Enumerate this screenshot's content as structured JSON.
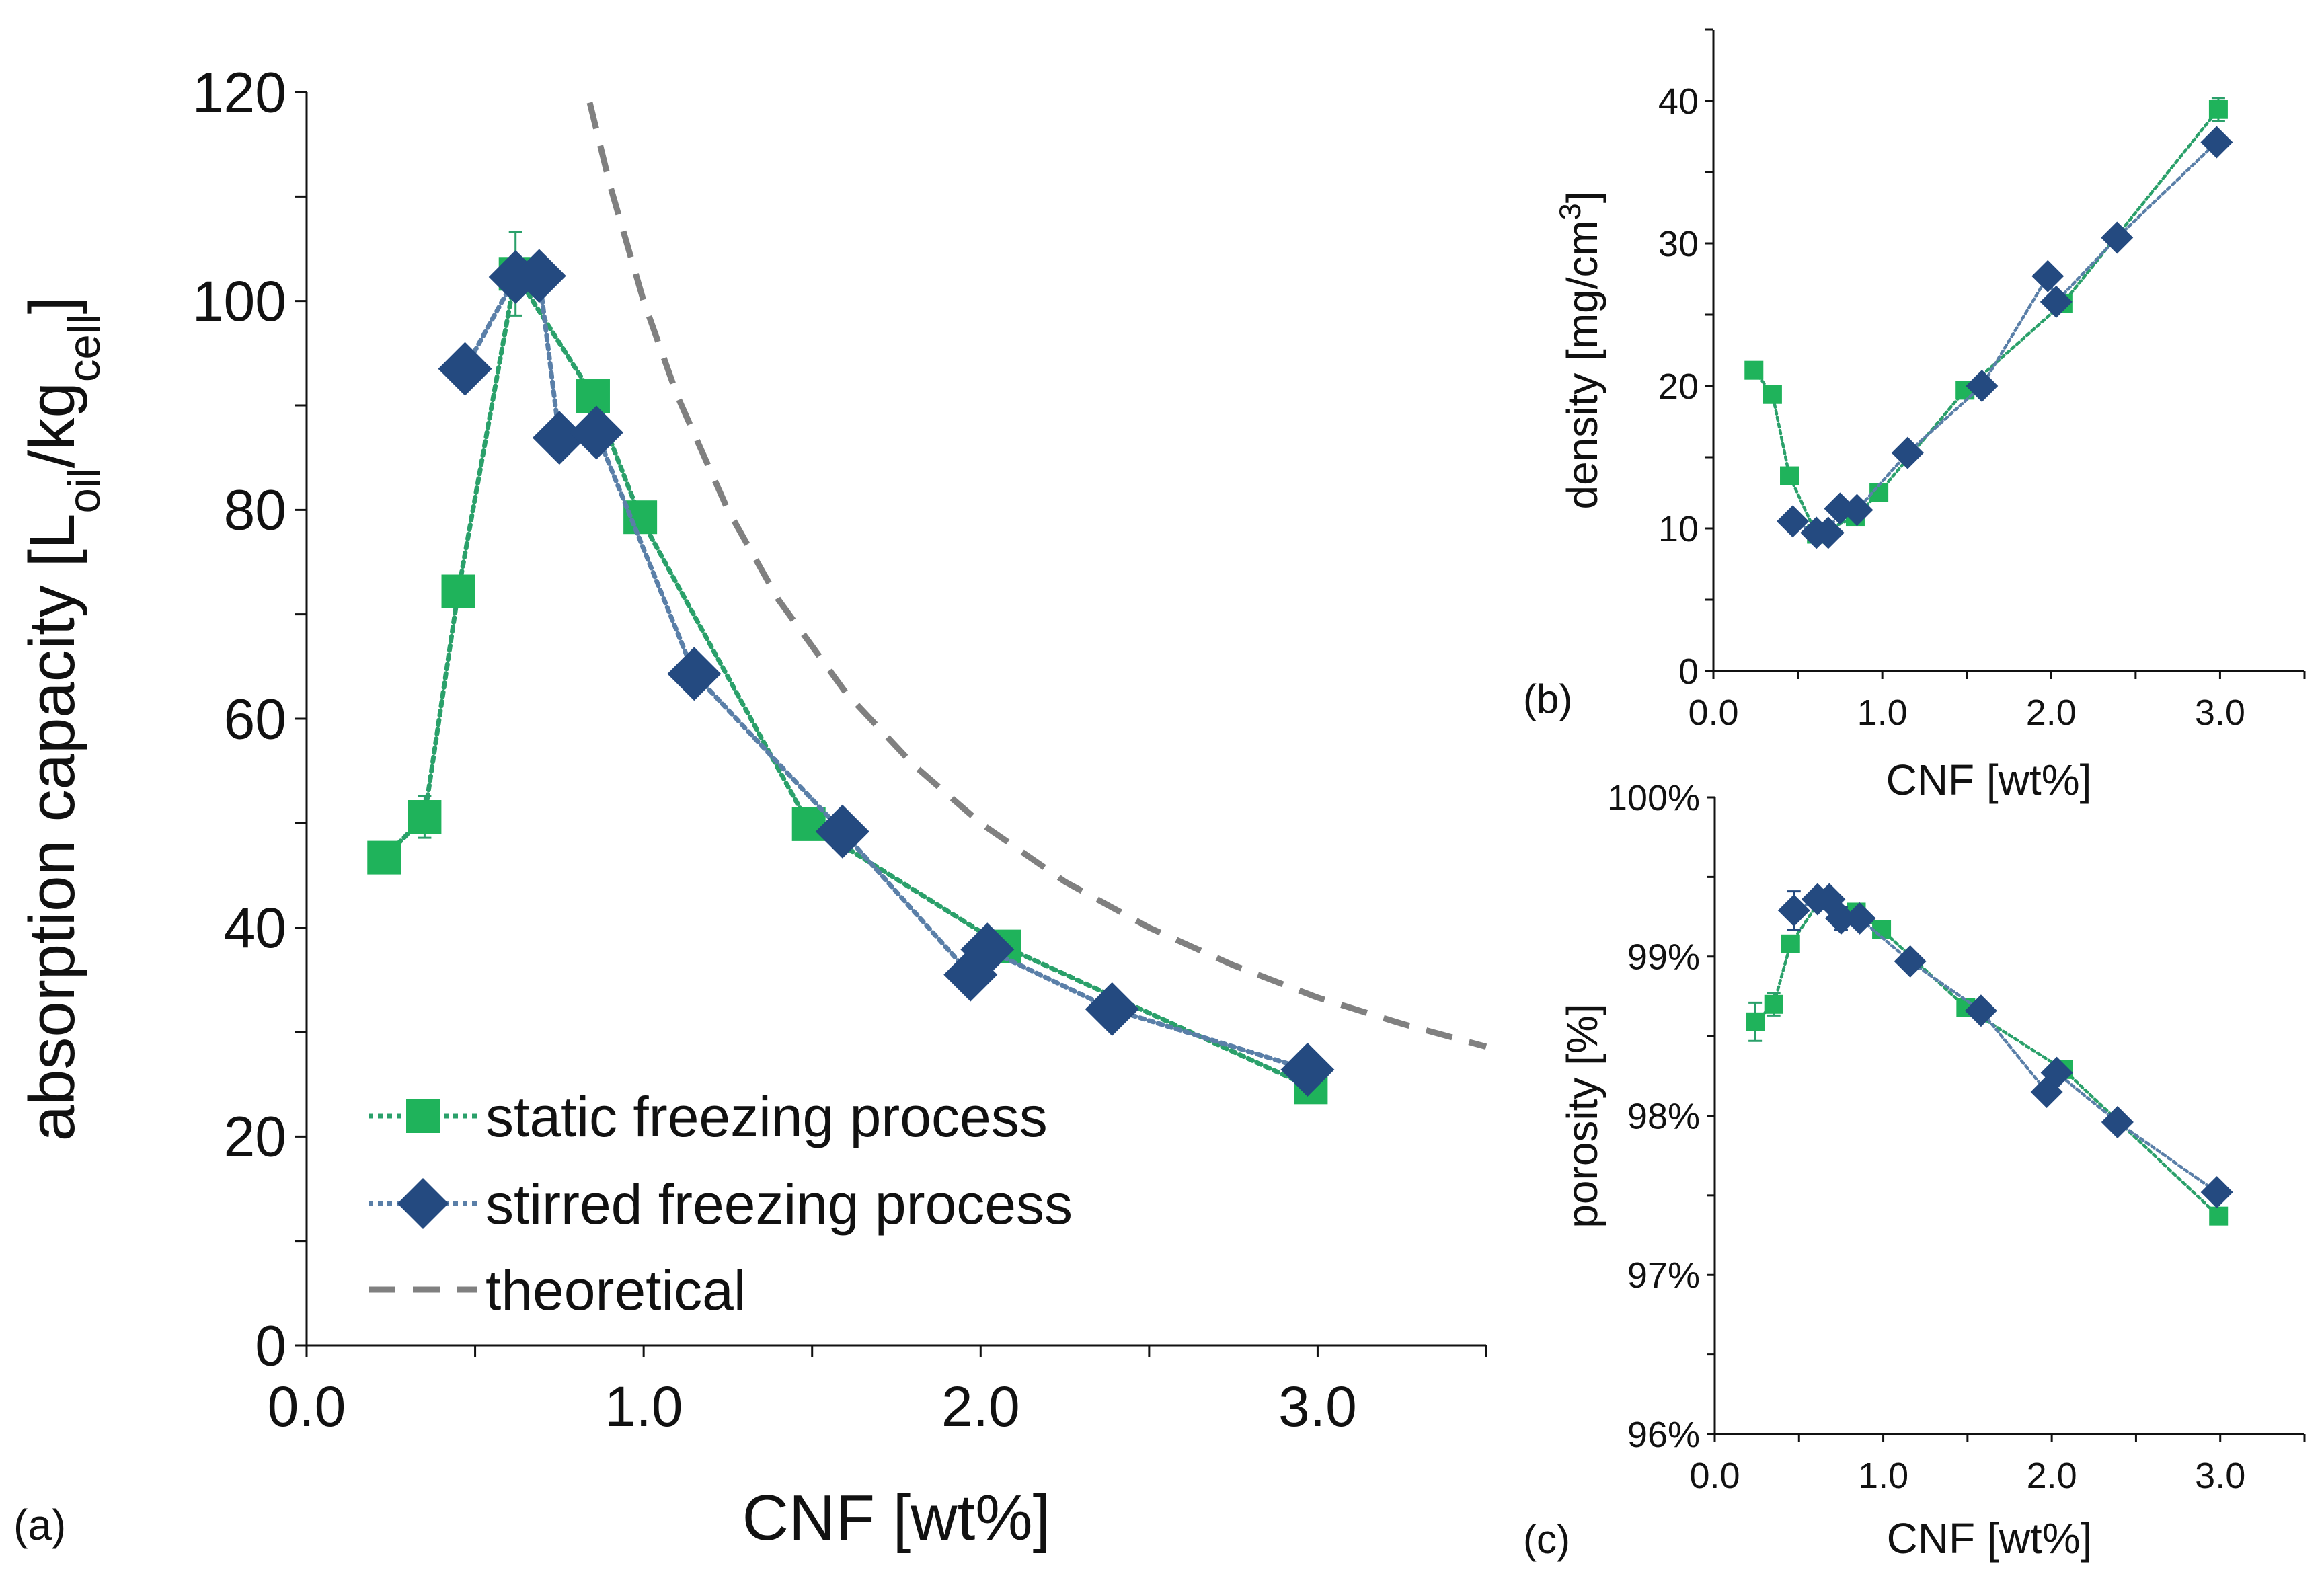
{
  "colors": {
    "static": "#1fb35b",
    "stirred": "#244a80",
    "static_line": "#2aa06a",
    "stirred_line": "#5a7fa8",
    "theoretical": "#808080"
  },
  "chart_data": [
    {
      "panel_label": "(a)",
      "type": "line",
      "xlabel": "CNF [wt%]",
      "ylabel_parts": [
        {
          "t": "absorption capacity [L"
        },
        {
          "t": "oil",
          "sub": true
        },
        {
          "t": "/kg"
        },
        {
          "t": "cell",
          "sub": true
        },
        {
          "t": "]"
        }
      ],
      "xlim": [
        0,
        3.5
      ],
      "ylim": [
        0,
        120
      ],
      "xticks": [
        "0.0",
        "1.0",
        "2.0",
        "3.0"
      ],
      "xtick_values": [
        0,
        1,
        2,
        3
      ],
      "yticks": [
        "0",
        "20",
        "40",
        "60",
        "80",
        "100",
        "120"
      ],
      "ytick_values": [
        0,
        20,
        40,
        60,
        80,
        100,
        120
      ],
      "legend": {
        "placement": "bottom-left",
        "entries": [
          "static freezing process",
          "stirred freezing process",
          "theoretical"
        ]
      },
      "series": [
        {
          "name": "static freezing process",
          "marker": "square",
          "x": [
            0.23,
            0.35,
            0.45,
            0.62,
            0.85,
            0.99,
            1.49,
            2.07,
            2.98
          ],
          "y": [
            46.7,
            50.6,
            72.2,
            102.6,
            90.9,
            79.3,
            49.9,
            38.2,
            24.7
          ],
          "yerr": [
            0,
            2,
            0,
            4,
            0,
            0,
            0,
            0,
            0
          ]
        },
        {
          "name": "stirred freezing process",
          "marker": "diamond",
          "x": [
            0.47,
            0.62,
            0.69,
            0.75,
            0.86,
            1.15,
            1.59,
            1.97,
            2.02,
            2.39,
            2.97
          ],
          "y": [
            93.5,
            102.3,
            102.4,
            86.9,
            87.4,
            64.3,
            49.2,
            35.5,
            37.9,
            32.2,
            26.4
          ],
          "yerr": [
            0,
            0,
            0,
            0,
            0,
            0,
            0,
            0,
            0,
            0,
            0
          ]
        },
        {
          "name": "theoretical",
          "style": "dashed",
          "x": [
            0.84,
            0.9,
            1.0,
            1.1,
            1.25,
            1.4,
            1.6,
            1.8,
            2.0,
            2.25,
            2.5,
            2.75,
            3.0,
            3.25,
            3.5
          ],
          "y": [
            119,
            111.1,
            100,
            90.9,
            80,
            71.4,
            62.5,
            55.6,
            50,
            44.4,
            40,
            36.4,
            33.3,
            30.8,
            28.6
          ]
        }
      ]
    },
    {
      "panel_label": "(b)",
      "type": "line",
      "xlabel": "CNF [wt%]",
      "ylabel_parts": [
        {
          "t": "density [mg/cm"
        },
        {
          "t": "3",
          "sup": true
        },
        {
          "t": "]"
        }
      ],
      "xlim": [
        0,
        3.5
      ],
      "ylim": [
        0,
        45
      ],
      "xticks": [
        "0.0",
        "1.0",
        "2.0",
        "3.0"
      ],
      "xtick_values": [
        0,
        1,
        2,
        3
      ],
      "yticks": [
        "0",
        "10",
        "20",
        "30",
        "40"
      ],
      "ytick_values": [
        0,
        10,
        20,
        30,
        40
      ],
      "series": [
        {
          "name": "static freezing process",
          "marker": "square",
          "x": [
            0.24,
            0.35,
            0.45,
            0.61,
            0.84,
            0.98,
            1.49,
            2.07,
            2.99
          ],
          "y": [
            21.1,
            19.4,
            13.7,
            9.6,
            10.8,
            12.5,
            19.7,
            25.8,
            39.4
          ],
          "yerr": [
            0.5,
            0,
            0,
            0,
            0,
            0,
            0,
            0.6,
            0.8
          ]
        },
        {
          "name": "stirred freezing process",
          "marker": "diamond",
          "x": [
            0.47,
            0.61,
            0.68,
            0.75,
            0.85,
            1.15,
            1.59,
            1.98,
            2.03,
            2.39,
            2.98
          ],
          "y": [
            10.5,
            9.7,
            9.7,
            11.4,
            11.3,
            15.3,
            20.0,
            27.7,
            25.9,
            30.4,
            37.1
          ],
          "yerr": [
            0,
            0,
            0,
            0,
            0,
            0,
            0,
            0,
            0,
            0,
            0
          ]
        }
      ]
    },
    {
      "panel_label": "(c)",
      "type": "line",
      "xlabel": "CNF [wt%]",
      "ylabel_parts": [
        {
          "t": "porosity [%]"
        }
      ],
      "xlim": [
        0,
        3.5
      ],
      "ylim": [
        96,
        100
      ],
      "xticks": [
        "0.0",
        "1.0",
        "2.0",
        "3.0"
      ],
      "xtick_values": [
        0,
        1,
        2,
        3
      ],
      "yticks": [
        "96%",
        "97%",
        "98%",
        "99%",
        "100%"
      ],
      "ytick_values": [
        96,
        97,
        98,
        99,
        100
      ],
      "series": [
        {
          "name": "static freezing process",
          "marker": "square",
          "x": [
            0.24,
            0.35,
            0.45,
            0.63,
            0.84,
            0.99,
            1.49,
            2.07,
            2.99
          ],
          "y": [
            98.59,
            98.7,
            99.08,
            99.36,
            99.28,
            99.17,
            98.68,
            98.29,
            97.37
          ],
          "yerr": [
            0.12,
            0.07,
            0,
            0.06,
            0,
            0,
            0,
            0,
            0
          ]
        },
        {
          "name": "stirred freezing process",
          "marker": "diamond",
          "x": [
            0.47,
            0.61,
            0.68,
            0.75,
            0.86,
            1.16,
            1.58,
            1.97,
            2.03,
            2.39,
            2.98
          ],
          "y": [
            99.29,
            99.36,
            99.36,
            99.24,
            99.24,
            98.97,
            98.66,
            98.15,
            98.27,
            97.96,
            97.52
          ],
          "yerr": [
            0.12,
            0.05,
            0,
            0.07,
            0,
            0,
            0,
            0,
            0,
            0,
            0
          ]
        }
      ]
    }
  ]
}
